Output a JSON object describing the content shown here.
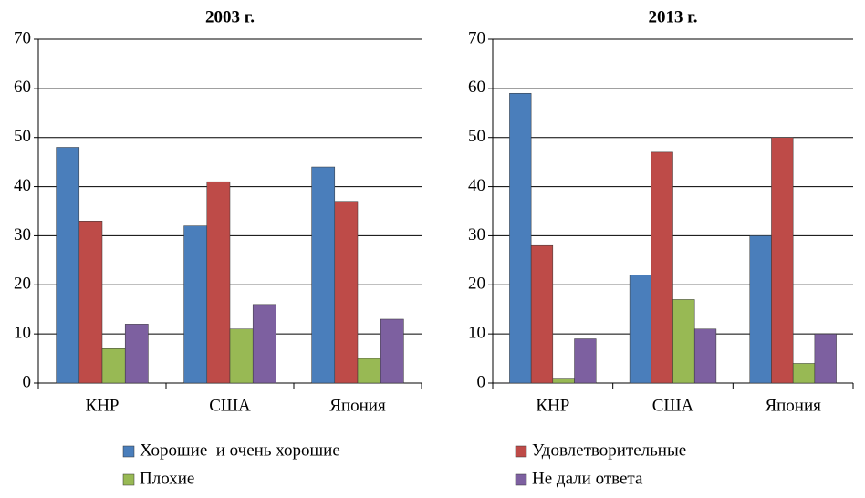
{
  "legend": [
    {
      "name": "Хорошие  и очень хорошие",
      "color": "#4a7ebb"
    },
    {
      "name": "Удовлетворительные",
      "color": "#be4b48"
    },
    {
      "name": "Плохие",
      "color": "#98b954"
    },
    {
      "name": "Не дали ответа",
      "color": "#7d60a0"
    }
  ],
  "chart_data": [
    {
      "type": "bar",
      "title": "2003 г.",
      "categories": [
        "КНР",
        "США",
        "Япония"
      ],
      "series": [
        {
          "values": [
            48,
            32,
            44
          ]
        },
        {
          "values": [
            33,
            41,
            37
          ]
        },
        {
          "values": [
            7,
            11,
            5
          ]
        },
        {
          "values": [
            12,
            16,
            13
          ]
        }
      ],
      "ylim": [
        0,
        70
      ],
      "yticks": [
        0,
        10,
        20,
        30,
        40,
        50,
        60,
        70
      ],
      "grid": true
    },
    {
      "type": "bar",
      "title": "2013 г.",
      "categories": [
        "КНР",
        "США",
        "Япония"
      ],
      "series": [
        {
          "values": [
            59,
            22,
            30
          ]
        },
        {
          "values": [
            28,
            47,
            50
          ]
        },
        {
          "values": [
            1,
            17,
            4
          ]
        },
        {
          "values": [
            9,
            11,
            10
          ]
        }
      ],
      "ylim": [
        0,
        70
      ],
      "yticks": [
        0,
        10,
        20,
        30,
        40,
        50,
        60,
        70
      ],
      "grid": true
    }
  ]
}
